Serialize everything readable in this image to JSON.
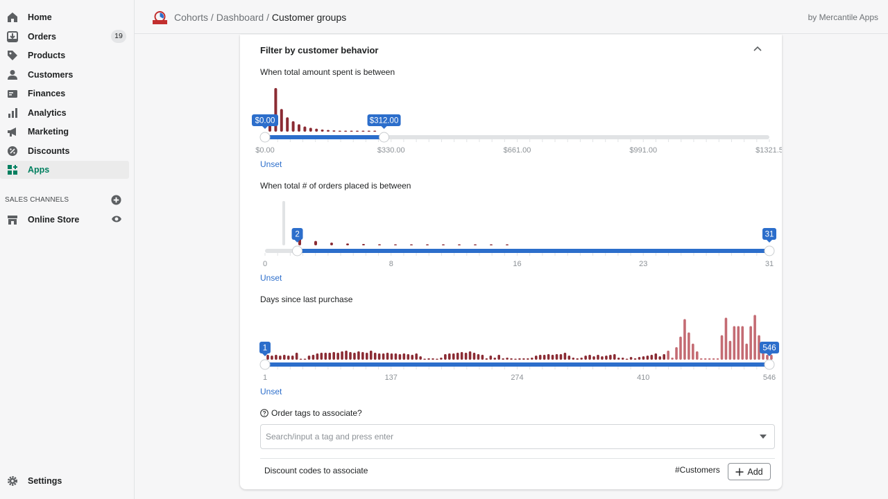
{
  "sidebar": {
    "items": [
      {
        "label": "Home",
        "icon": "home-icon"
      },
      {
        "label": "Orders",
        "icon": "orders-icon",
        "badge": "19"
      },
      {
        "label": "Products",
        "icon": "tag-icon"
      },
      {
        "label": "Customers",
        "icon": "person-icon"
      },
      {
        "label": "Finances",
        "icon": "finances-icon"
      },
      {
        "label": "Analytics",
        "icon": "bar-chart-icon"
      },
      {
        "label": "Marketing",
        "icon": "megaphone-icon"
      },
      {
        "label": "Discounts",
        "icon": "discount-icon"
      },
      {
        "label": "Apps",
        "icon": "apps-icon",
        "active": true
      }
    ],
    "sales_channels_heading": "SALES CHANNELS",
    "online_store": "Online Store",
    "settings": "Settings"
  },
  "topbar": {
    "breadcrumb": [
      "Cohorts",
      "Dashboard",
      "Customer groups"
    ],
    "byline": "by Mercantile Apps"
  },
  "card": {
    "title": "Filter by customer behavior",
    "unset_label": "Unset",
    "spent": {
      "label": "When total amount spent is between",
      "min_value": "$0.00",
      "max_value": "$312.00",
      "selected": [
        0,
        312
      ],
      "ticks": [
        "$0.00",
        "$330.00",
        "$661.00",
        "$991.00",
        "$1321.5"
      ],
      "hist": [
        0.38,
        1.0,
        0.52,
        0.33,
        0.24,
        0.17,
        0.12,
        0.09,
        0.07,
        0.05,
        0.04,
        0.03,
        0.02,
        0.02,
        0.015,
        0.012,
        0.01,
        0.01,
        0.008
      ]
    },
    "orders": {
      "label": "When total # of orders placed is between",
      "min_value": "2",
      "max_value": "31",
      "selected": [
        2,
        31
      ],
      "ticks": [
        "0",
        "8",
        "16",
        "23",
        "31"
      ],
      "hist": [
        0.26,
        0.16,
        0.1,
        0.07,
        0.05,
        0.04,
        0.03,
        0.025,
        0.02,
        0.015,
        0.012,
        0.01,
        0.008,
        0.006
      ]
    },
    "days": {
      "label": "Days since last purchase",
      "min_value": "1",
      "max_value": "546",
      "selected": [
        1,
        546
      ],
      "ticks": [
        "1",
        "137",
        "274",
        "410",
        "546"
      ],
      "hist": [
        0.07,
        0.06,
        0.07,
        0.06,
        0.07,
        0.06,
        0.06,
        0.1,
        0.01,
        0.01,
        0.06,
        0.07,
        0.09,
        0.1,
        0.1,
        0.1,
        0.11,
        0.1,
        0.12,
        0.13,
        0.11,
        0.1,
        0.12,
        0.11,
        0.1,
        0.13,
        0.1,
        0.09,
        0.09,
        0.1,
        0.09,
        0.09,
        0.08,
        0.09,
        0.08,
        0.07,
        0.09,
        0.05,
        0.01,
        0.02,
        0.02,
        0.01,
        0.03,
        0.08,
        0.09,
        0.09,
        0.1,
        0.11,
        0.1,
        0.12,
        0.1,
        0.08,
        0.07,
        0.02,
        0.06,
        0.03,
        0.07,
        0.02,
        0.03,
        0.02,
        0.01,
        0.02,
        0.02,
        0.02,
        0.03,
        0.06,
        0.07,
        0.07,
        0.08,
        0.07,
        0.08,
        0.08,
        0.1,
        0.06,
        0.03,
        0.02,
        0.03,
        0.06,
        0.07,
        0.05,
        0.07,
        0.05,
        0.06,
        0.07,
        0.08,
        0.03,
        0.03,
        0.01,
        0.04,
        0.02,
        0.04,
        0.05,
        0.06,
        0.07,
        0.09,
        0.05,
        0.08,
        0.13,
        0.03,
        0.18,
        0.33,
        0.58,
        0.39,
        0.23,
        0.12,
        0.02,
        0.02,
        0.02,
        0.02,
        0.02,
        0.35,
        0.6,
        0.27,
        0.48,
        0.48,
        0.48,
        0.23,
        0.48,
        0.64,
        0.35,
        0.12,
        0.07,
        0.07
      ]
    }
  },
  "tags": {
    "label": "Order tags to associate?",
    "placeholder": "Search/input a tag and press enter"
  },
  "discounts": {
    "label": "Discount codes to associate",
    "tag": "#Customers",
    "add_label": "Add"
  },
  "colors": {
    "accent": "#2c6ecb",
    "bar_dark": "#8b2c34",
    "bar_light": "#c46b73",
    "track": "#e1e3e5",
    "apps_active": "#007f5f"
  }
}
